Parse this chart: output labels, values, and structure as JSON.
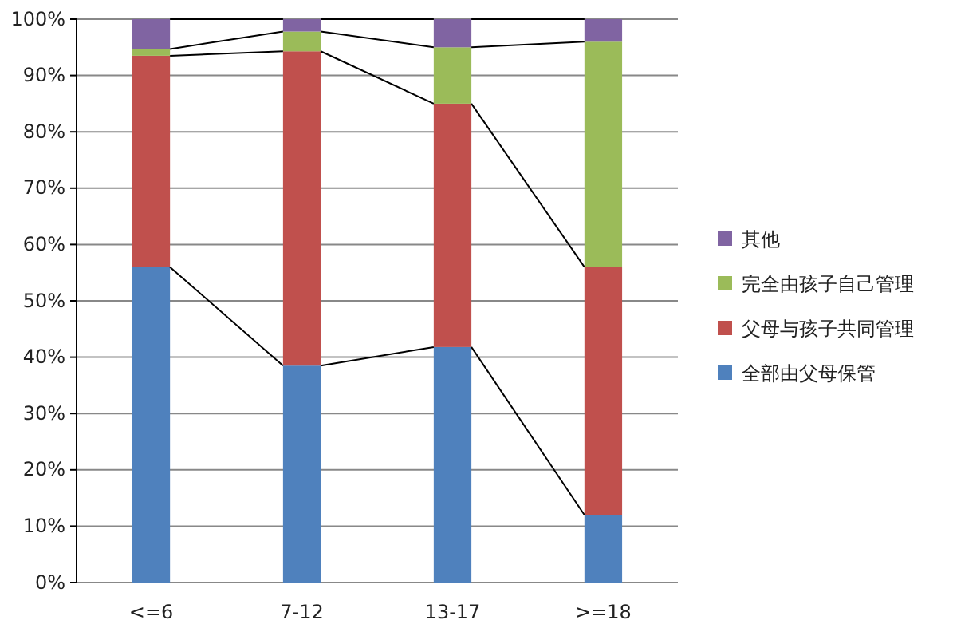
{
  "chart_data": {
    "type": "bar",
    "stacked": true,
    "categories": [
      "<=6",
      "7-12",
      "13-17",
      ">=18"
    ],
    "series": [
      {
        "name": "全部由父母保管",
        "color": "#4f81bd",
        "values": [
          56,
          38.5,
          41.8,
          12
        ]
      },
      {
        "name": "父母与孩子共同管理",
        "color": "#c0504d",
        "values": [
          37.5,
          55.8,
          43.2,
          44
        ]
      },
      {
        "name": "完全由孩子自己管理",
        "color": "#9bbb59",
        "values": [
          1.2,
          3.5,
          10,
          40
        ]
      },
      {
        "name": "其他",
        "color": "#8064a2",
        "values": [
          5.3,
          2.2,
          5,
          4
        ]
      }
    ],
    "ylim": [
      0,
      100
    ],
    "yticks": [
      {
        "value": 0,
        "label": "0%"
      },
      {
        "value": 10,
        "label": "10%"
      },
      {
        "value": 20,
        "label": "20%"
      },
      {
        "value": 30,
        "label": "30%"
      },
      {
        "value": 40,
        "label": "40%"
      },
      {
        "value": 50,
        "label": "50%"
      },
      {
        "value": 60,
        "label": "60%"
      },
      {
        "value": 70,
        "label": "70%"
      },
      {
        "value": 80,
        "label": "80%"
      },
      {
        "value": 90,
        "label": "90%"
      },
      {
        "value": 100,
        "label": "100%"
      }
    ],
    "grid": "y",
    "legend": "right"
  }
}
